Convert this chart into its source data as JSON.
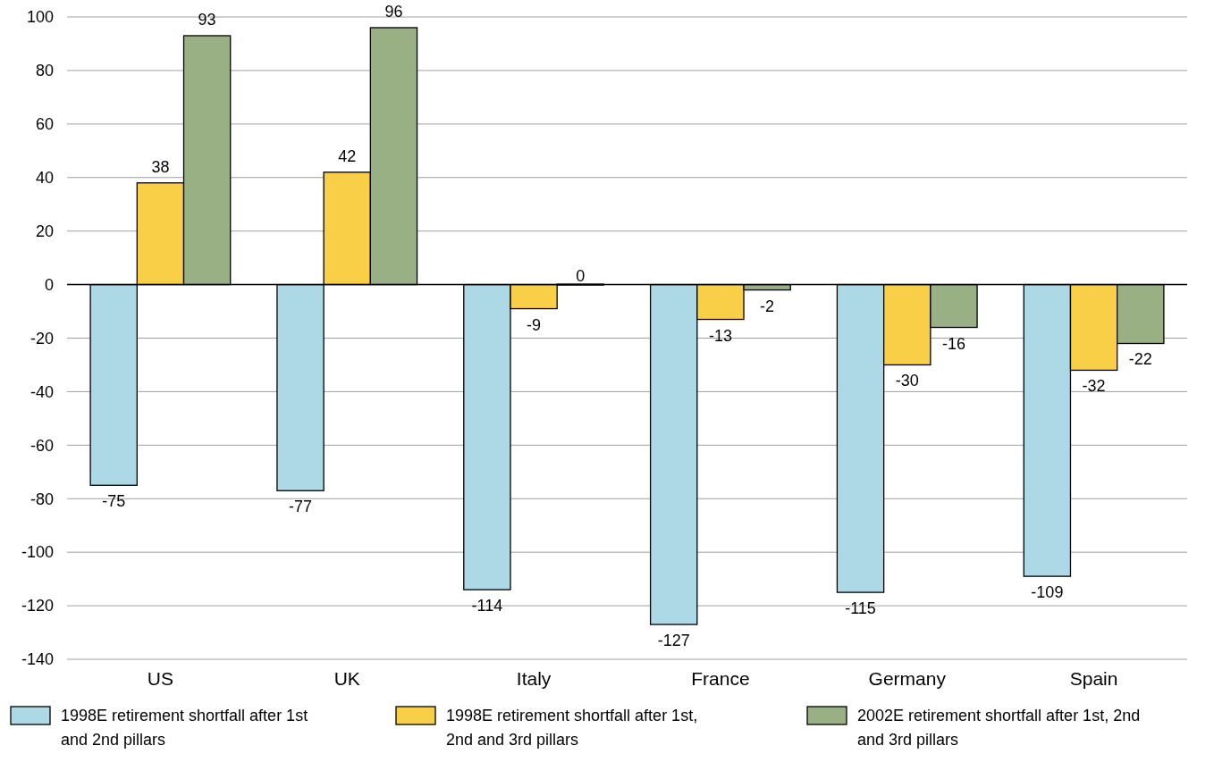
{
  "chart_data": {
    "type": "bar",
    "categories": [
      "US",
      "UK",
      "Italy",
      "France",
      "Germany",
      "Spain"
    ],
    "series": [
      {
        "name": "1998E retirement shortfall after 1st and 2nd pillars",
        "color": "#add8e6",
        "values": [
          -75,
          -77,
          -114,
          -127,
          -115,
          -109
        ]
      },
      {
        "name": "1998E retirement shortfall after 1st, 2nd and 3rd pillars",
        "color": "#f8cf47",
        "values": [
          38,
          42,
          -9,
          -13,
          -30,
          -32
        ]
      },
      {
        "name": "2002E retirement shortfall after 1st, 2nd and 3rd pillars",
        "color": "#98b084",
        "values": [
          93,
          96,
          0,
          -2,
          -16,
          -22
        ]
      }
    ],
    "ylim": [
      -140,
      100
    ],
    "yticks": [
      -140,
      -120,
      -100,
      -80,
      -60,
      -40,
      -20,
      0,
      20,
      40,
      60,
      80,
      100
    ],
    "grid": "y",
    "legend": "bottom",
    "data_labels": true
  }
}
